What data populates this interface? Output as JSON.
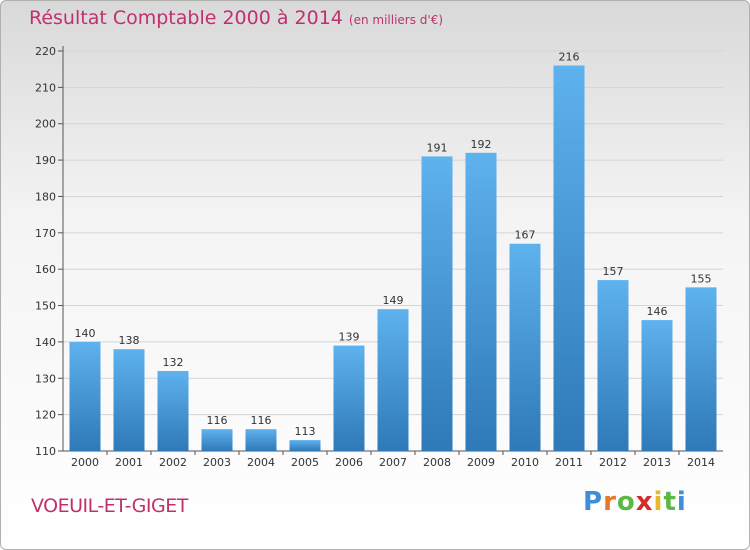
{
  "header": {
    "title": "Résultat Comptable 2000 à 2014",
    "unit": "(en milliers d'€)"
  },
  "footer": {
    "commune": "VOEUIL-ET-GIGET",
    "logo_letters": [
      "P",
      "r",
      "o",
      "x",
      "i",
      "t",
      "i"
    ],
    "logo_colors": [
      "#3e8ed8",
      "#e8772a",
      "#5cb845",
      "#d62b2b",
      "#e8b72a",
      "#5cb845",
      "#3e8ed8"
    ]
  },
  "colors": {
    "bar_light": "#5eb2ee",
    "bar_dark": "#2f79b8",
    "accent": "#c0306f"
  },
  "chart_data": {
    "type": "bar",
    "categories": [
      "2000",
      "2001",
      "2002",
      "2003",
      "2004",
      "2005",
      "2006",
      "2007",
      "2008",
      "2009",
      "2010",
      "2011",
      "2012",
      "2013",
      "2014"
    ],
    "values": [
      140,
      138,
      132,
      116,
      116,
      113,
      139,
      149,
      191,
      192,
      167,
      216,
      157,
      146,
      155
    ],
    "ylim": [
      110,
      220
    ],
    "yticks": [
      110,
      120,
      130,
      140,
      150,
      160,
      170,
      180,
      190,
      200,
      210,
      220
    ],
    "grid": true
  }
}
